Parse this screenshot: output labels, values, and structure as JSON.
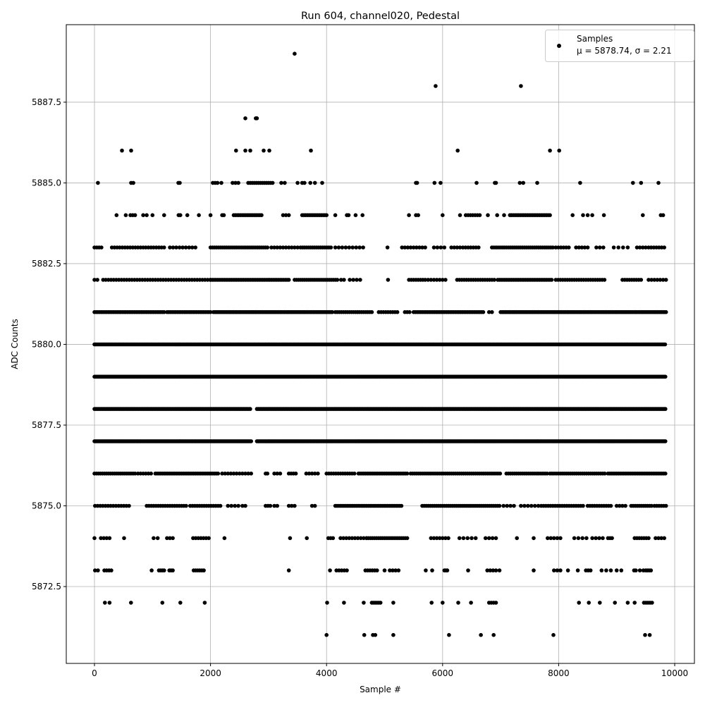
{
  "chart_data": {
    "type": "scatter",
    "title": "Run 604, channel020, Pedestal",
    "xlabel": "Sample #",
    "ylabel": "ADC Counts",
    "xlim": [
      -486,
      10340
    ],
    "ylim": [
      5870.12,
      5889.9
    ],
    "xticks": [
      0,
      2000,
      4000,
      6000,
      8000,
      10000
    ],
    "xtick_labels": [
      "0",
      "2000",
      "4000",
      "6000",
      "8000",
      "10000"
    ],
    "yticks": [
      5872.5,
      5875.0,
      5877.5,
      5880.0,
      5882.5,
      5885.0,
      5887.5
    ],
    "ytick_labels": [
      "5872.5",
      "5875.0",
      "5877.5",
      "5880.0",
      "5882.5",
      "5885.0",
      "5887.5"
    ],
    "grid": true,
    "marker_color": "#000000",
    "legend": {
      "placement": "top-right",
      "label": "Samples",
      "stats": "μ = 5878.74, σ = 2.21"
    },
    "note": "Samples grouped by ADC level; 'points' are individual sample indices, 'runs' are [start, end, step] spans of densely spaced samples",
    "levels": [
      {
        "y": 5889,
        "points": [
          3450
        ]
      },
      {
        "y": 5888,
        "points": [
          5880,
          7350
        ]
      },
      {
        "y": 5887,
        "points": [
          2600,
          2780,
          2800
        ]
      },
      {
        "y": 5886,
        "points": [
          474,
          632,
          2440,
          2600,
          2685,
          2916,
          3013,
          3730,
          6260,
          7850,
          8010
        ]
      },
      {
        "y": 5885,
        "points": [
          60,
          632,
          670,
          1446,
          1470,
          2040,
          2080,
          2120,
          2187,
          2380,
          2430,
          2480,
          3220,
          3280,
          3500,
          3580,
          3620,
          3720,
          3800,
          3925,
          5540,
          5560,
          5860,
          5965,
          6585,
          6900,
          6920,
          7330,
          7390,
          7630,
          8370,
          9280,
          9420,
          9720
        ],
        "runs": [
          [
            2650,
            3100,
            35
          ]
        ]
      },
      {
        "y": 5884,
        "points": [
          380,
          540,
          620,
          660,
          700,
          840,
          900,
          1000,
          1200,
          1450,
          1480,
          1600,
          1800,
          2000,
          2200,
          2230,
          3250,
          3300,
          3350,
          4150,
          4350,
          4380,
          4500,
          4620,
          5420,
          5540,
          5580,
          6000,
          6300,
          6780,
          6940,
          7060,
          8240,
          8420,
          8500,
          8580,
          8780,
          9450,
          9760,
          9800
        ],
        "runs": [
          [
            2400,
            2900,
            30
          ],
          [
            3580,
            4000,
            30
          ],
          [
            6400,
            6670,
            40
          ],
          [
            7160,
            7850,
            30
          ]
        ]
      },
      {
        "y": 5883,
        "points": [
          5050
        ],
        "runs": [
          [
            0,
            120,
            40
          ],
          [
            300,
            1200,
            45
          ],
          [
            1300,
            1750,
            55
          ],
          [
            2000,
            3000,
            35
          ],
          [
            3050,
            3500,
            50
          ],
          [
            3550,
            4100,
            35
          ],
          [
            4150,
            4650,
            60
          ],
          [
            5300,
            5700,
            50
          ],
          [
            5850,
            6050,
            60
          ],
          [
            6150,
            6300,
            50
          ],
          [
            6350,
            6650,
            45
          ],
          [
            6850,
            7900,
            35
          ],
          [
            7950,
            8200,
            45
          ],
          [
            8300,
            8500,
            50
          ],
          [
            8650,
            8800,
            60
          ],
          [
            8950,
            9250,
            80
          ],
          [
            9350,
            9500,
            50
          ],
          [
            9550,
            9850,
            45
          ]
        ]
      },
      {
        "y": 5882,
        "points": [
          0,
          50,
          5060
        ],
        "runs": [
          [
            150,
            2000,
            45
          ],
          [
            2000,
            3350,
            30
          ],
          [
            3450,
            4200,
            35
          ],
          [
            4250,
            4300,
            50
          ],
          [
            4400,
            4600,
            60
          ],
          [
            5420,
            5700,
            40
          ],
          [
            5750,
            5900,
            50
          ],
          [
            5950,
            6050,
            50
          ],
          [
            6250,
            6900,
            40
          ],
          [
            6950,
            7900,
            30
          ],
          [
            7950,
            8800,
            40
          ],
          [
            9100,
            9450,
            40
          ],
          [
            9550,
            9700,
            50
          ],
          [
            9750,
            9850,
            50
          ]
        ]
      },
      {
        "y": 5881,
        "runs": [
          [
            0,
            1200,
            30
          ],
          [
            1250,
            2000,
            30
          ],
          [
            2050,
            4100,
            25
          ],
          [
            4150,
            4800,
            35
          ],
          [
            4900,
            5250,
            40
          ],
          [
            5350,
            5450,
            40
          ],
          [
            5500,
            6700,
            30
          ],
          [
            6800,
            6850,
            50
          ],
          [
            7000,
            9850,
            25
          ]
        ]
      },
      {
        "y": 5880,
        "runs": [
          [
            0,
            9850,
            22
          ]
        ]
      },
      {
        "y": 5879,
        "runs": [
          [
            0,
            9850,
            20
          ]
        ]
      },
      {
        "y": 5878,
        "runs": [
          [
            0,
            2700,
            22
          ],
          [
            2800,
            9850,
            22
          ]
        ]
      },
      {
        "y": 5877,
        "runs": [
          [
            0,
            2700,
            20
          ],
          [
            2800,
            9850,
            20
          ]
        ]
      },
      {
        "y": 5876,
        "runs": [
          [
            0,
            700,
            35
          ],
          [
            750,
            1000,
            45
          ],
          [
            1050,
            2150,
            30
          ],
          [
            2200,
            2350,
            50
          ],
          [
            2400,
            2700,
            50
          ],
          [
            2950,
            2980,
            30
          ],
          [
            3100,
            3200,
            50
          ],
          [
            3350,
            3500,
            40
          ],
          [
            3650,
            3750,
            50
          ],
          [
            3800,
            3850,
            50
          ],
          [
            4000,
            4500,
            40
          ],
          [
            4550,
            5400,
            30
          ],
          [
            5450,
            7000,
            35
          ],
          [
            7100,
            7800,
            35
          ],
          [
            7850,
            8800,
            35
          ],
          [
            8850,
            9850,
            30
          ]
        ]
      },
      {
        "y": 5875,
        "runs": [
          [
            10,
            630,
            45
          ],
          [
            900,
            1600,
            40
          ],
          [
            1650,
            2200,
            40
          ],
          [
            2300,
            2500,
            60
          ],
          [
            2550,
            2600,
            50
          ],
          [
            2950,
            3050,
            40
          ],
          [
            3100,
            3150,
            50
          ],
          [
            3350,
            3450,
            50
          ],
          [
            3750,
            3800,
            50
          ],
          [
            4150,
            5300,
            30
          ],
          [
            5650,
            7000,
            35
          ],
          [
            7050,
            7250,
            60
          ],
          [
            7350,
            7650,
            60
          ],
          [
            7700,
            8450,
            40
          ],
          [
            8500,
            8900,
            40
          ],
          [
            9000,
            9150,
            50
          ],
          [
            9250,
            9600,
            35
          ],
          [
            9650,
            9850,
            40
          ]
        ]
      },
      {
        "y": 5874,
        "points": [
          0,
          510,
          2240,
          3370,
          3660,
          7280,
          7570
        ],
        "runs": [
          [
            110,
            260,
            50
          ],
          [
            1020,
            1090,
            70
          ],
          [
            1250,
            1350,
            50
          ],
          [
            1700,
            1970,
            45
          ],
          [
            4030,
            4110,
            40
          ],
          [
            4240,
            4690,
            50
          ],
          [
            4690,
            5390,
            35
          ],
          [
            5800,
            6100,
            50
          ],
          [
            6290,
            6630,
            70
          ],
          [
            6740,
            6950,
            60
          ],
          [
            7810,
            8040,
            55
          ],
          [
            8270,
            8520,
            70
          ],
          [
            8580,
            8790,
            60
          ],
          [
            8850,
            8920,
            35
          ],
          [
            9310,
            9550,
            40
          ],
          [
            9670,
            9840,
            50
          ]
        ]
      },
      {
        "y": 5873,
        "points": [
          985,
          3350,
          4060,
          5000,
          5710,
          5820,
          6440,
          6980,
          7570,
          8160,
          8330
        ],
        "runs": [
          [
            10,
            60,
            50
          ],
          [
            170,
            320,
            40
          ],
          [
            1110,
            1200,
            30
          ],
          [
            1290,
            1350,
            30
          ],
          [
            1710,
            1910,
            35
          ],
          [
            4170,
            4350,
            45
          ],
          [
            4670,
            4900,
            40
          ],
          [
            5090,
            5250,
            50
          ],
          [
            6030,
            6080,
            25
          ],
          [
            6770,
            6930,
            50
          ],
          [
            7920,
            8030,
            55
          ],
          [
            8470,
            8550,
            40
          ],
          [
            8740,
            8900,
            80
          ],
          [
            9000,
            9080,
            80
          ],
          [
            9300,
            9330,
            30
          ],
          [
            9400,
            9460,
            60
          ],
          [
            9500,
            9610,
            30
          ]
        ]
      },
      {
        "y": 5872,
        "points": [
          180,
          260,
          630,
          1170,
          1480,
          1900,
          4010,
          4300,
          4640,
          5150,
          5810,
          6000,
          6270,
          6490,
          8350,
          8520,
          8710,
          8970,
          9190,
          9310
        ],
        "runs": [
          [
            4780,
            4930,
            30
          ],
          [
            6800,
            6930,
            40
          ],
          [
            9470,
            9610,
            35
          ]
        ]
      },
      {
        "y": 5871,
        "points": [
          4000,
          4650,
          4800,
          4840,
          5150,
          6110,
          6660,
          6880,
          7910,
          9490,
          9570
        ]
      }
    ]
  }
}
